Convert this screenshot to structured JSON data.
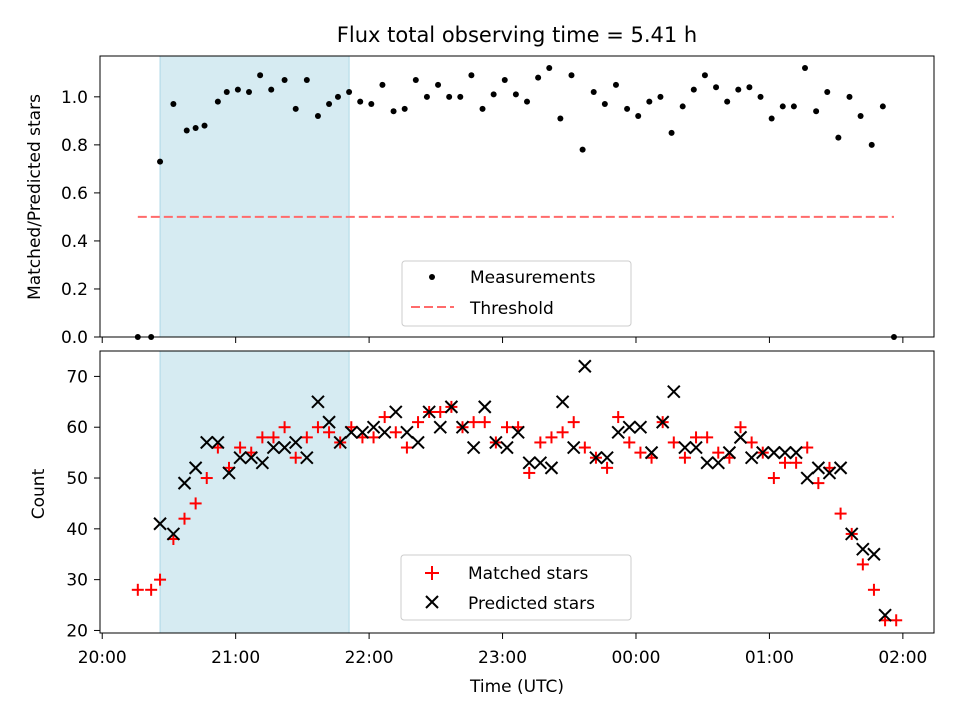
{
  "title": "Flux total observing time = 5.41 h",
  "chart_data": [
    {
      "type": "scatter",
      "ylabel": "Matched/Predicted stars",
      "ylim": [
        0,
        1.17
      ],
      "yticks": [
        "0.0",
        "0.2",
        "0.4",
        "0.6",
        "0.8",
        "1.0"
      ],
      "grid": false,
      "legend_position": "lower-center",
      "observing_window_color": "#add8e6",
      "observing_window": [
        "20:26",
        "21:51"
      ],
      "threshold": 0.5,
      "threshold_color": "#ff6b6b",
      "legend": [
        {
          "key": "measurements",
          "label": "Measurements"
        },
        {
          "key": "threshold",
          "label": "Threshold"
        }
      ],
      "series": [
        {
          "name": "Measurements",
          "color": "#000000",
          "marker": "dot",
          "points": [
            [
              "20:16",
              0.0
            ],
            [
              "20:22",
              0.0
            ],
            [
              "20:26",
              0.73
            ],
            [
              "20:32",
              0.97
            ],
            [
              "20:38",
              0.86
            ],
            [
              "20:42",
              0.87
            ],
            [
              "20:46",
              0.88
            ],
            [
              "20:52",
              0.98
            ],
            [
              "20:56",
              1.02
            ],
            [
              "21:01",
              1.03
            ],
            [
              "21:06",
              1.02
            ],
            [
              "21:11",
              1.09
            ],
            [
              "21:16",
              1.03
            ],
            [
              "21:22",
              1.07
            ],
            [
              "21:27",
              0.95
            ],
            [
              "21:32",
              1.07
            ],
            [
              "21:37",
              0.92
            ],
            [
              "21:42",
              0.97
            ],
            [
              "21:46",
              1.0
            ],
            [
              "21:51",
              1.02
            ],
            [
              "21:56",
              0.98
            ],
            [
              "22:01",
              0.97
            ],
            [
              "22:06",
              1.05
            ],
            [
              "22:11",
              0.94
            ],
            [
              "22:16",
              0.95
            ],
            [
              "22:21",
              1.07
            ],
            [
              "22:26",
              1.0
            ],
            [
              "22:31",
              1.05
            ],
            [
              "22:36",
              1.0
            ],
            [
              "22:41",
              1.0
            ],
            [
              "22:46",
              1.09
            ],
            [
              "22:51",
              0.95
            ],
            [
              "22:56",
              1.01
            ],
            [
              "23:01",
              1.07
            ],
            [
              "23:06",
              1.01
            ],
            [
              "23:11",
              0.98
            ],
            [
              "23:16",
              1.08
            ],
            [
              "23:21",
              1.12
            ],
            [
              "23:26",
              0.91
            ],
            [
              "23:31",
              1.09
            ],
            [
              "23:36",
              0.78
            ],
            [
              "23:41",
              1.02
            ],
            [
              "23:46",
              0.97
            ],
            [
              "23:51",
              1.05
            ],
            [
              "23:56",
              0.95
            ],
            [
              "00:01",
              0.92
            ],
            [
              "00:06",
              0.98
            ],
            [
              "00:11",
              1.0
            ],
            [
              "00:16",
              0.85
            ],
            [
              "00:21",
              0.96
            ],
            [
              "00:26",
              1.03
            ],
            [
              "00:31",
              1.09
            ],
            [
              "00:36",
              1.04
            ],
            [
              "00:41",
              0.98
            ],
            [
              "00:46",
              1.03
            ],
            [
              "00:51",
              1.04
            ],
            [
              "00:56",
              1.0
            ],
            [
              "01:01",
              0.91
            ],
            [
              "01:06",
              0.96
            ],
            [
              "01:11",
              0.96
            ],
            [
              "01:16",
              1.12
            ],
            [
              "01:21",
              0.94
            ],
            [
              "01:26",
              1.02
            ],
            [
              "01:31",
              0.83
            ],
            [
              "01:36",
              1.0
            ],
            [
              "01:41",
              0.92
            ],
            [
              "01:46",
              0.8
            ],
            [
              "01:51",
              0.96
            ],
            [
              "01:56",
              0.0
            ]
          ]
        },
        {
          "name": "Threshold",
          "color": "#ff6b6b",
          "style": "dashed",
          "points": [
            [
              "20:16",
              0.5
            ],
            [
              "01:56",
              0.5
            ]
          ]
        }
      ]
    },
    {
      "type": "scatter",
      "xlabel": "Time (UTC)",
      "ylabel": "Count",
      "ylim": [
        19.5,
        75
      ],
      "yticks": [
        "20",
        "30",
        "40",
        "50",
        "60",
        "70"
      ],
      "xlim": [
        "19:59",
        "02:14"
      ],
      "xticks": [
        "20:00",
        "21:00",
        "22:00",
        "23:00",
        "00:00",
        "01:00",
        "02:00"
      ],
      "grid": false,
      "legend_position": "lower-center",
      "observing_window_color": "#add8e6",
      "observing_window": [
        "20:26",
        "21:51"
      ],
      "legend": [
        {
          "key": "matched",
          "label": "Matched stars"
        },
        {
          "key": "predicted",
          "label": "Predicted stars"
        }
      ],
      "series": [
        {
          "name": "Matched stars",
          "color": "#ff0000",
          "marker": "plus",
          "points": [
            [
              "20:16",
              28
            ],
            [
              "20:22",
              28
            ],
            [
              "20:26",
              30
            ],
            [
              "20:32",
              38
            ],
            [
              "20:37",
              42
            ],
            [
              "20:42",
              45
            ],
            [
              "20:47",
              50
            ],
            [
              "20:52",
              56
            ],
            [
              "20:57",
              52
            ],
            [
              "21:02",
              56
            ],
            [
              "21:07",
              55
            ],
            [
              "21:12",
              58
            ],
            [
              "21:17",
              58
            ],
            [
              "21:22",
              60
            ],
            [
              "21:27",
              54
            ],
            [
              "21:32",
              58
            ],
            [
              "21:37",
              60
            ],
            [
              "21:42",
              59
            ],
            [
              "21:47",
              57
            ],
            [
              "21:52",
              60
            ],
            [
              "21:57",
              58
            ],
            [
              "22:02",
              58
            ],
            [
              "22:07",
              62
            ],
            [
              "22:12",
              59
            ],
            [
              "22:17",
              56
            ],
            [
              "22:22",
              61
            ],
            [
              "22:27",
              63
            ],
            [
              "22:32",
              63
            ],
            [
              "22:37",
              64
            ],
            [
              "22:42",
              60
            ],
            [
              "22:47",
              61
            ],
            [
              "22:52",
              61
            ],
            [
              "22:57",
              57
            ],
            [
              "23:02",
              60
            ],
            [
              "23:07",
              60
            ],
            [
              "23:12",
              51
            ],
            [
              "23:17",
              57
            ],
            [
              "23:22",
              58
            ],
            [
              "23:27",
              59
            ],
            [
              "23:32",
              61
            ],
            [
              "23:37",
              56
            ],
            [
              "23:42",
              54
            ],
            [
              "23:47",
              52
            ],
            [
              "23:52",
              62
            ],
            [
              "23:57",
              57
            ],
            [
              "00:02",
              55
            ],
            [
              "00:07",
              54
            ],
            [
              "00:12",
              61
            ],
            [
              "00:17",
              57
            ],
            [
              "00:22",
              54
            ],
            [
              "00:27",
              58
            ],
            [
              "00:32",
              58
            ],
            [
              "00:37",
              55
            ],
            [
              "00:42",
              54
            ],
            [
              "00:47",
              60
            ],
            [
              "00:52",
              57
            ],
            [
              "00:57",
              55
            ],
            [
              "01:02",
              50
            ],
            [
              "01:07",
              53
            ],
            [
              "01:12",
              53
            ],
            [
              "01:17",
              56
            ],
            [
              "01:22",
              49
            ],
            [
              "01:27",
              52
            ],
            [
              "01:32",
              43
            ],
            [
              "01:37",
              39
            ],
            [
              "01:42",
              33
            ],
            [
              "01:47",
              28
            ],
            [
              "01:52",
              22
            ],
            [
              "01:57",
              22
            ]
          ]
        },
        {
          "name": "Predicted stars",
          "color": "#000000",
          "marker": "x",
          "points": [
            [
              "20:26",
              41
            ],
            [
              "20:32",
              39
            ],
            [
              "20:37",
              49
            ],
            [
              "20:42",
              52
            ],
            [
              "20:47",
              57
            ],
            [
              "20:52",
              57
            ],
            [
              "20:57",
              51
            ],
            [
              "21:02",
              54
            ],
            [
              "21:07",
              54
            ],
            [
              "21:12",
              53
            ],
            [
              "21:17",
              56
            ],
            [
              "21:22",
              56
            ],
            [
              "21:27",
              57
            ],
            [
              "21:32",
              54
            ],
            [
              "21:37",
              65
            ],
            [
              "21:42",
              61
            ],
            [
              "21:47",
              57
            ],
            [
              "21:52",
              59
            ],
            [
              "21:57",
              59
            ],
            [
              "22:02",
              60
            ],
            [
              "22:07",
              59
            ],
            [
              "22:12",
              63
            ],
            [
              "22:17",
              59
            ],
            [
              "22:22",
              57
            ],
            [
              "22:27",
              63
            ],
            [
              "22:32",
              60
            ],
            [
              "22:37",
              64
            ],
            [
              "22:42",
              60
            ],
            [
              "22:47",
              56
            ],
            [
              "22:52",
              64
            ],
            [
              "22:57",
              57
            ],
            [
              "23:02",
              56
            ],
            [
              "23:07",
              59
            ],
            [
              "23:12",
              53
            ],
            [
              "23:17",
              53
            ],
            [
              "23:22",
              52
            ],
            [
              "23:27",
              65
            ],
            [
              "23:32",
              56
            ],
            [
              "23:37",
              72
            ],
            [
              "23:42",
              54
            ],
            [
              "23:47",
              54
            ],
            [
              "23:52",
              59
            ],
            [
              "23:57",
              60
            ],
            [
              "00:02",
              60
            ],
            [
              "00:07",
              55
            ],
            [
              "00:12",
              61
            ],
            [
              "00:17",
              67
            ],
            [
              "00:22",
              56
            ],
            [
              "00:27",
              56
            ],
            [
              "00:32",
              53
            ],
            [
              "00:37",
              53
            ],
            [
              "00:42",
              55
            ],
            [
              "00:47",
              58
            ],
            [
              "00:52",
              54
            ],
            [
              "00:57",
              55
            ],
            [
              "01:02",
              55
            ],
            [
              "01:07",
              55
            ],
            [
              "01:12",
              55
            ],
            [
              "01:17",
              50
            ],
            [
              "01:22",
              52
            ],
            [
              "01:27",
              51
            ],
            [
              "01:32",
              52
            ],
            [
              "01:37",
              39
            ],
            [
              "01:42",
              36
            ],
            [
              "01:47",
              35
            ],
            [
              "01:52",
              23
            ]
          ]
        }
      ]
    }
  ]
}
